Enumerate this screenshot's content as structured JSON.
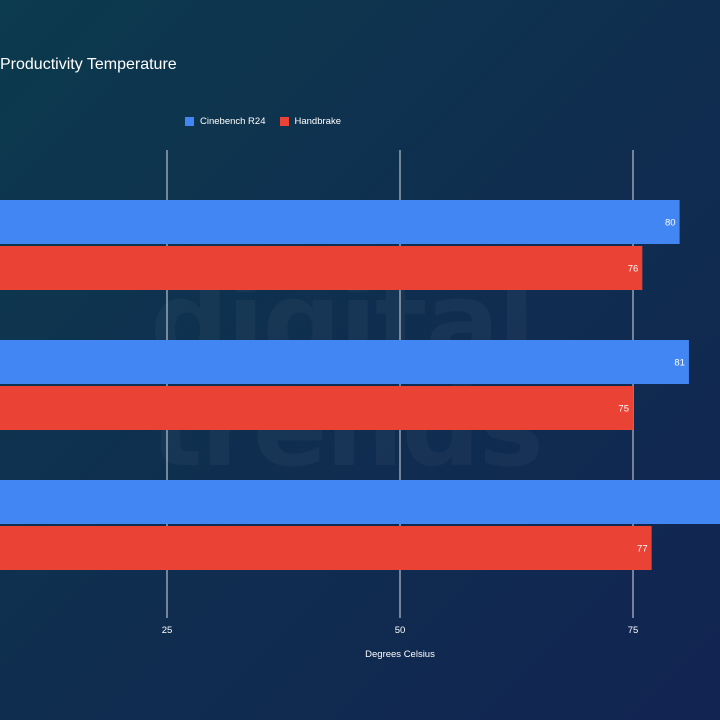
{
  "chart_data": {
    "type": "bar",
    "orientation": "horizontal",
    "title": "Productivity Temperature",
    "xlabel": "Degrees Celsius",
    "ylabel": "",
    "categories": [
      "",
      "",
      ""
    ],
    "series": [
      {
        "name": "Cinebench R24",
        "color": "#4286f4",
        "values": [
          80,
          81,
          87
        ]
      },
      {
        "name": "Handbrake",
        "color": "#ea4335",
        "values": [
          76,
          75,
          77
        ]
      }
    ],
    "xlim": [
      7,
      87
    ],
    "xticks": [
      25,
      50,
      75
    ],
    "grid": true,
    "legend": "top"
  },
  "watermark": [
    "digital",
    "trends"
  ]
}
